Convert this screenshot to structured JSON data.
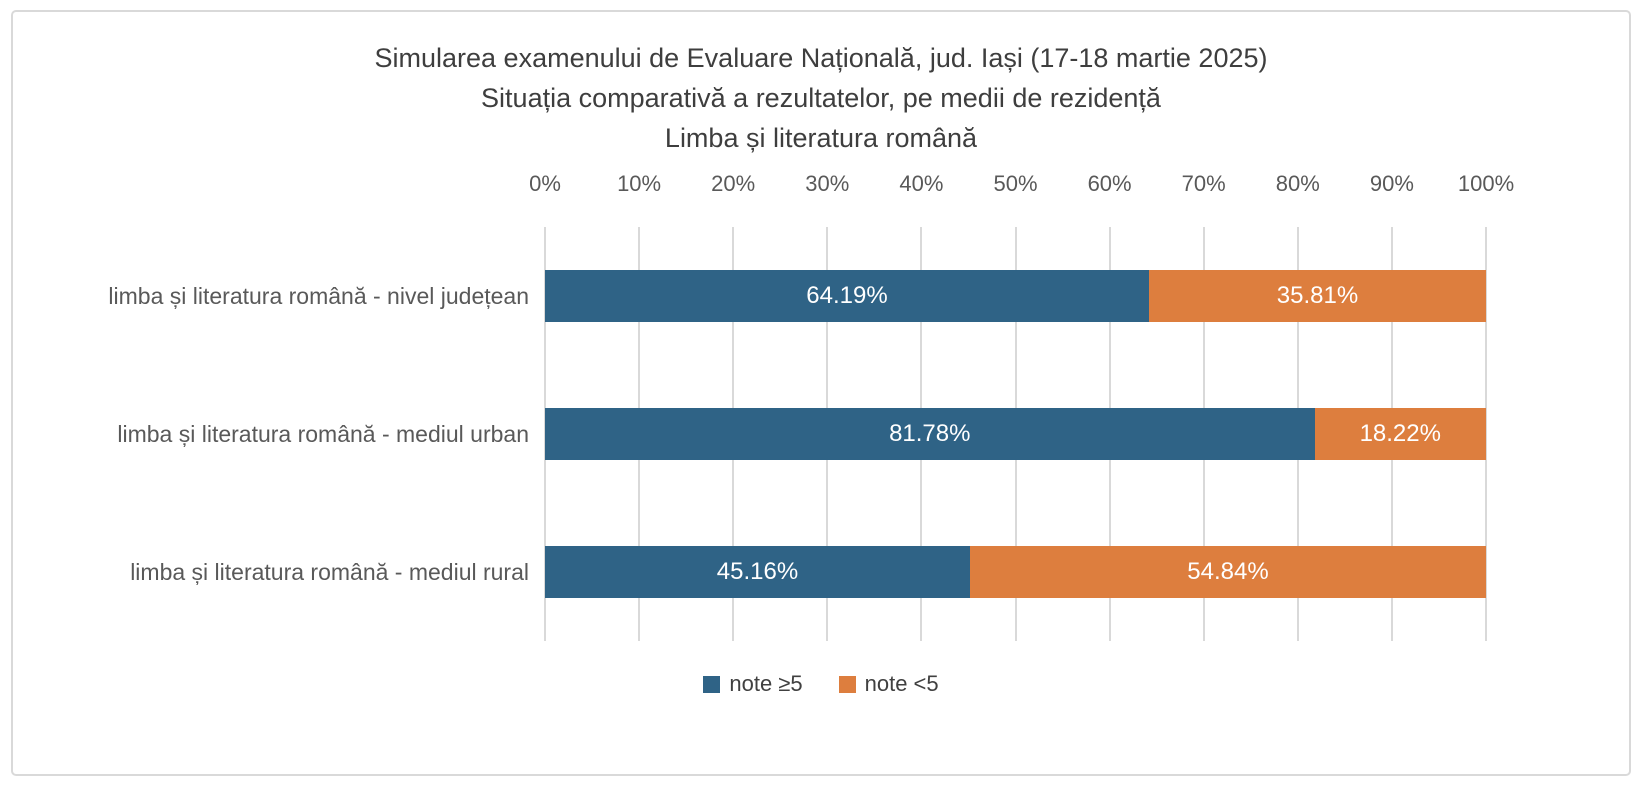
{
  "title": {
    "line1": "Simularea examenului de Evaluare Națională, jud. Iași (17-18 martie 2025)",
    "line2": "Situația comparativă a rezultatelor, pe medii de rezidență",
    "line3": "Limba și literatura română"
  },
  "chart_data": {
    "type": "bar",
    "orientation": "horizontal",
    "stacked": true,
    "title": "Simularea examenului de Evaluare Națională, jud. Iași (17-18 martie 2025) — Situația comparativă a rezultatelor, pe medii de rezidență — Limba și literatura română",
    "categories": [
      "limba și literatura română - nivel județean",
      "limba și literatura română - mediul urban",
      "limba și literatura română - mediul rural"
    ],
    "series": [
      {
        "name": "note ≥5",
        "color": "#2F6386",
        "values": [
          64.19,
          81.78,
          45.16
        ],
        "labels": [
          "64.19%",
          "81.78%",
          "45.16%"
        ]
      },
      {
        "name": "note <5",
        "color": "#DD7E3E",
        "values": [
          35.81,
          18.22,
          54.84
        ],
        "labels": [
          "35.81%",
          "18.22%",
          "54.84%"
        ]
      }
    ],
    "x_ticks": [
      "0%",
      "10%",
      "20%",
      "30%",
      "40%",
      "50%",
      "60%",
      "70%",
      "80%",
      "90%",
      "100%"
    ],
    "xlim": [
      0,
      100
    ],
    "grid": true,
    "gridline_color": "#D9D9D9",
    "axis_label_color": "#595959",
    "data_label_color": "#FFFFFF",
    "legend_position": "bottom"
  }
}
